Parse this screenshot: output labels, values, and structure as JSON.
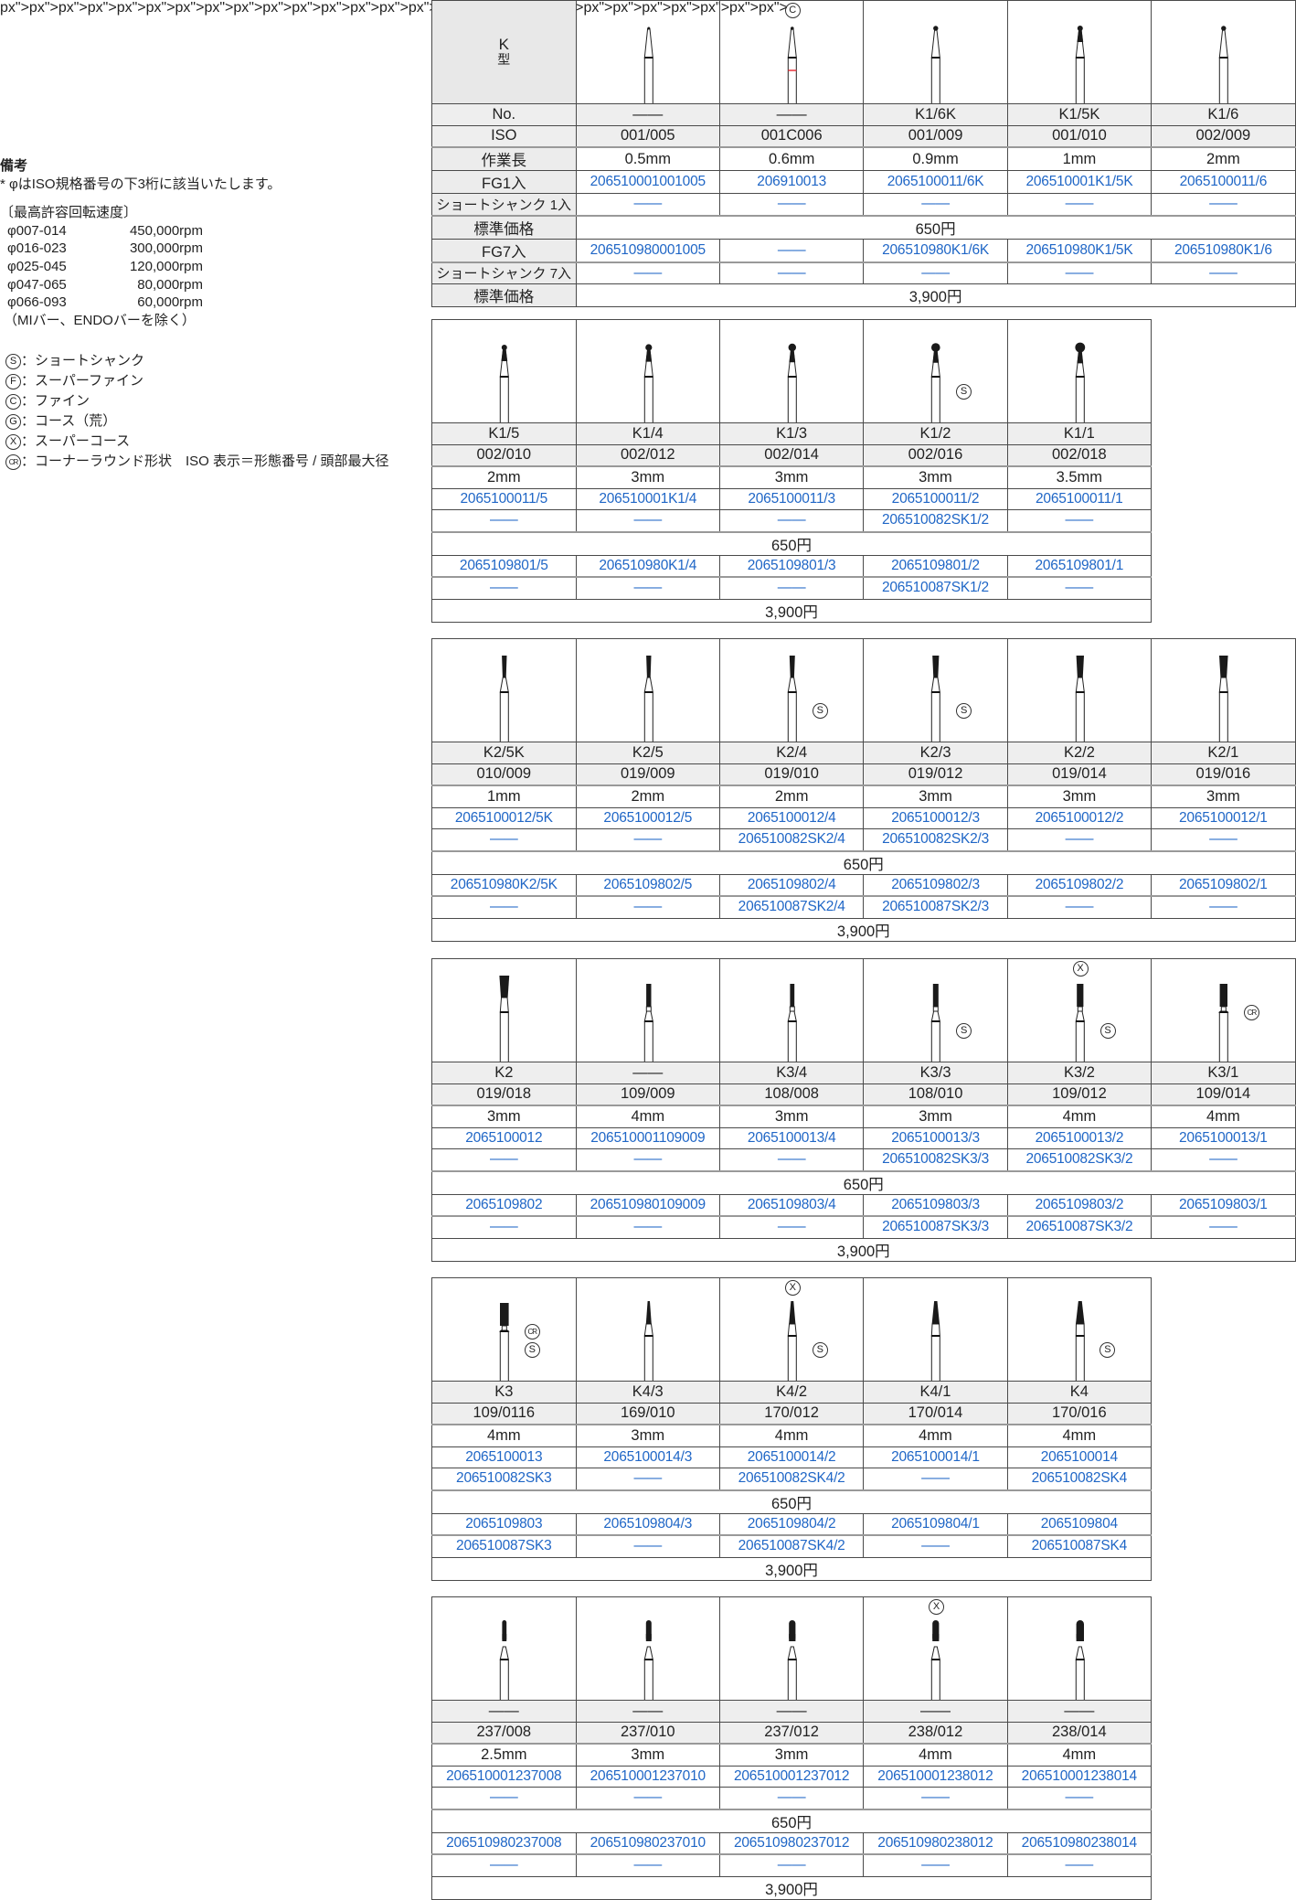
{
  "notes": {
    "heading": "備考",
    "iso_note": "* φはISO規格番号の下3桁に該当いたします。",
    "speed_title": "〔最高許容回転速度〕",
    "speeds": [
      {
        "range": "φ007-014",
        "rpm": "450,000rpm"
      },
      {
        "range": "φ016-023",
        "rpm": "300,000rpm"
      },
      {
        "range": "φ025-045",
        "rpm": "120,000rpm"
      },
      {
        "range": "φ047-065",
        "rpm": "80,000rpm"
      },
      {
        "range": "φ066-093",
        "rpm": "60,000rpm"
      }
    ],
    "speed_exclusion": "（MIバー、ENDOバーを除く）",
    "marks": [
      {
        "symbol": "S",
        "text": "：ショートシャンク"
      },
      {
        "symbol": "F",
        "text": "：スーパーファイン"
      },
      {
        "symbol": "C",
        "text": "：ファイン"
      },
      {
        "symbol": "G",
        "text": "：コース（荒）"
      },
      {
        "symbol": "X",
        "text": "：スーパーコース"
      },
      {
        "symbol": "CR",
        "text": "：コーナーラウンド形状　ISO 表示＝形態番号 / 頭部最大径"
      }
    ]
  },
  "header": {
    "type_label": "K",
    "type_suffix": "型",
    "row_labels": [
      "No.",
      "ISO",
      "作業長",
      "FG1入",
      "ショートシャンク 1入",
      "標準価格",
      "FG7入",
      "ショートシャンク 7入",
      "標準価格"
    ]
  },
  "colors": {
    "code": "#1f66c6",
    "ring": "#e8333a",
    "head": "#1a1a1a"
  },
  "tables": [
    {
      "price1": "650円",
      "price7": "3,900円",
      "items": [
        {
          "no": "——",
          "iso": "001/005",
          "length": "0.5mm",
          "fg1": "206510001001005",
          "ss1": "——",
          "fg7": "206510980001005",
          "ss7": "——",
          "shape": "round",
          "marks": []
        },
        {
          "no": "——",
          "iso": "001C006",
          "length": "0.6mm",
          "fg1": "206910013",
          "ss1": "——",
          "fg7": "——",
          "ss7": "——",
          "shape": "round",
          "ring": true,
          "marks": [
            {
              "symbol": "C",
              "pos": "top"
            }
          ]
        },
        {
          "no": "K1/6K",
          "iso": "001/009",
          "length": "0.9mm",
          "fg1": "2065100011/6K",
          "ss1": "——",
          "fg7": "206510980K1/6K",
          "ss7": "——",
          "shape": "round",
          "marks": []
        },
        {
          "no": "K1/5K",
          "iso": "001/010",
          "length": "1mm",
          "fg1": "206510001K1/5K",
          "ss1": "——",
          "fg7": "206510980K1/5K",
          "ss7": "——",
          "shape": "round",
          "marks": []
        },
        {
          "no": "K1/6",
          "iso": "002/009",
          "length": "2mm",
          "fg1": "2065100011/6",
          "ss1": "——",
          "fg7": "206510980K1/6",
          "ss7": "——",
          "shape": "round",
          "marks": []
        }
      ]
    },
    {
      "price1": "650円",
      "price7": "3,900円",
      "items": [
        {
          "no": "K1/5",
          "iso": "002/010",
          "length": "2mm",
          "fg1": "2065100011/5",
          "ss1": "——",
          "fg7": "2065109801/5",
          "ss7": "——",
          "shape": "round",
          "marks": []
        },
        {
          "no": "K1/4",
          "iso": "002/012",
          "length": "3mm",
          "fg1": "206510001K1/4",
          "ss1": "——",
          "fg7": "206510980K1/4",
          "ss7": "——",
          "shape": "round",
          "marks": []
        },
        {
          "no": "K1/3",
          "iso": "002/014",
          "length": "3mm",
          "fg1": "2065100011/3",
          "ss1": "——",
          "fg7": "2065109801/3",
          "ss7": "——",
          "shape": "round",
          "marks": []
        },
        {
          "no": "K1/2",
          "iso": "002/016",
          "length": "3mm",
          "fg1": "2065100011/2",
          "ss1": "206510082SK1/2",
          "fg7": "2065109801/2",
          "ss7": "206510087SK1/2",
          "shape": "round",
          "marks": [
            {
              "symbol": "S",
              "pos": "side"
            }
          ]
        },
        {
          "no": "K1/1",
          "iso": "002/018",
          "length": "3.5mm",
          "fg1": "2065100011/1",
          "ss1": "——",
          "fg7": "2065109801/1",
          "ss7": "——",
          "shape": "round",
          "marks": []
        }
      ]
    },
    {
      "price1": "650円",
      "price7": "3,900円",
      "items": [
        {
          "no": "K2/5K",
          "iso": "010/009",
          "length": "1mm",
          "fg1": "2065100012/5K",
          "ss1": "——",
          "fg7": "206510980K2/5K",
          "ss7": "——",
          "shape": "inverted-cone",
          "marks": []
        },
        {
          "no": "K2/5",
          "iso": "019/009",
          "length": "2mm",
          "fg1": "2065100012/5",
          "ss1": "——",
          "fg7": "2065109802/5",
          "ss7": "——",
          "shape": "inverted-cone",
          "marks": []
        },
        {
          "no": "K2/4",
          "iso": "019/010",
          "length": "2mm",
          "fg1": "2065100012/4",
          "ss1": "206510082SK2/4",
          "fg7": "2065109802/4",
          "ss7": "206510087SK2/4",
          "shape": "inverted-cone",
          "marks": [
            {
              "symbol": "S",
              "pos": "side"
            }
          ]
        },
        {
          "no": "K2/3",
          "iso": "019/012",
          "length": "3mm",
          "fg1": "2065100012/3",
          "ss1": "206510082SK2/3",
          "fg7": "2065109802/3",
          "ss7": "206510087SK2/3",
          "shape": "inverted-cone",
          "marks": [
            {
              "symbol": "S",
              "pos": "side"
            }
          ]
        },
        {
          "no": "K2/2",
          "iso": "019/014",
          "length": "3mm",
          "fg1": "2065100012/2",
          "ss1": "——",
          "fg7": "2065109802/2",
          "ss7": "——",
          "shape": "inverted-cone",
          "marks": []
        },
        {
          "no": "K2/1",
          "iso": "019/016",
          "length": "3mm",
          "fg1": "2065100012/1",
          "ss1": "——",
          "fg7": "2065109802/1",
          "ss7": "——",
          "shape": "inverted-cone",
          "marks": []
        }
      ]
    },
    {
      "price1": "650円",
      "price7": "3,900円",
      "items": [
        {
          "no": "K2",
          "iso": "019/018",
          "length": "3mm",
          "fg1": "2065100012",
          "ss1": "——",
          "fg7": "2065109802",
          "ss7": "——",
          "shape": "inverted-cone",
          "marks": []
        },
        {
          "no": "——",
          "iso": "109/009",
          "length": "4mm",
          "fg1": "206510001109009",
          "ss1": "——",
          "fg7": "206510980109009",
          "ss7": "——",
          "shape": "cylinder",
          "marks": []
        },
        {
          "no": "K3/4",
          "iso": "108/008",
          "length": "3mm",
          "fg1": "2065100013/4",
          "ss1": "——",
          "fg7": "2065109803/4",
          "ss7": "——",
          "shape": "cylinder",
          "marks": []
        },
        {
          "no": "K3/3",
          "iso": "108/010",
          "length": "3mm",
          "fg1": "2065100013/3",
          "ss1": "206510082SK3/3",
          "fg7": "2065109803/3",
          "ss7": "206510087SK3/3",
          "shape": "cylinder",
          "marks": [
            {
              "symbol": "S",
              "pos": "side"
            }
          ]
        },
        {
          "no": "K3/2",
          "iso": "109/012",
          "length": "4mm",
          "fg1": "2065100013/2",
          "ss1": "206510082SK3/2",
          "fg7": "2065109803/2",
          "ss7": "206510087SK3/2",
          "shape": "cylinder",
          "marks": [
            {
              "symbol": "X",
              "pos": "top"
            },
            {
              "symbol": "S",
              "pos": "side"
            }
          ]
        },
        {
          "no": "K3/1",
          "iso": "109/014",
          "length": "4mm",
          "fg1": "2065100013/1",
          "ss1": "——",
          "fg7": "2065109803/1",
          "ss7": "——",
          "shape": "cylinder",
          "marks": [
            {
              "symbol": "CR",
              "pos": "side-high"
            }
          ]
        }
      ]
    },
    {
      "price1": "650円",
      "price7": "3,900円",
      "items": [
        {
          "no": "K3",
          "iso": "109/0116",
          "length": "4mm",
          "fg1": "2065100013",
          "ss1": "206510082SK3",
          "fg7": "2065109803",
          "ss7": "206510087SK3",
          "shape": "cylinder",
          "marks": [
            {
              "symbol": "CR",
              "pos": "side-high"
            },
            {
              "symbol": "S",
              "pos": "side"
            }
          ]
        },
        {
          "no": "K4/3",
          "iso": "169/010",
          "length": "3mm",
          "fg1": "2065100014/3",
          "ss1": "——",
          "fg7": "2065109804/3",
          "ss7": "——",
          "shape": "taper",
          "marks": []
        },
        {
          "no": "K4/2",
          "iso": "170/012",
          "length": "4mm",
          "fg1": "2065100014/2",
          "ss1": "206510082SK4/2",
          "fg7": "2065109804/2",
          "ss7": "206510087SK4/2",
          "shape": "taper",
          "marks": [
            {
              "symbol": "X",
              "pos": "top"
            },
            {
              "symbol": "S",
              "pos": "side"
            }
          ]
        },
        {
          "no": "K4/1",
          "iso": "170/014",
          "length": "4mm",
          "fg1": "2065100014/1",
          "ss1": "——",
          "fg7": "2065109804/1",
          "ss7": "——",
          "shape": "taper",
          "marks": []
        },
        {
          "no": "K4",
          "iso": "170/016",
          "length": "4mm",
          "fg1": "2065100014",
          "ss1": "206510082SK4",
          "fg7": "2065109804",
          "ss7": "206510087SK4",
          "shape": "taper",
          "marks": [
            {
              "symbol": "S",
              "pos": "side"
            }
          ]
        }
      ]
    },
    {
      "price1": "650円",
      "price7": "3,900円",
      "items": [
        {
          "no": "——",
          "iso": "237/008",
          "length": "2.5mm",
          "fg1": "206510001237008",
          "ss1": "——",
          "fg7": "206510980237008",
          "ss7": "——",
          "shape": "pear",
          "marks": []
        },
        {
          "no": "——",
          "iso": "237/010",
          "length": "3mm",
          "fg1": "206510001237010",
          "ss1": "——",
          "fg7": "206510980237010",
          "ss7": "——",
          "shape": "pear",
          "marks": []
        },
        {
          "no": "——",
          "iso": "237/012",
          "length": "3mm",
          "fg1": "206510001237012",
          "ss1": "——",
          "fg7": "206510980237012",
          "ss7": "——",
          "shape": "pear",
          "marks": []
        },
        {
          "no": "——",
          "iso": "238/012",
          "length": "4mm",
          "fg1": "206510001238012",
          "ss1": "——",
          "fg7": "206510980238012",
          "ss7": "——",
          "shape": "pear",
          "marks": [
            {
              "symbol": "X",
              "pos": "top"
            }
          ]
        },
        {
          "no": "——",
          "iso": "238/014",
          "length": "4mm",
          "fg1": "206510001238014",
          "ss1": "——",
          "fg7": "206510980238014",
          "ss7": "——",
          "shape": "pear",
          "marks": []
        }
      ]
    }
  ]
}
